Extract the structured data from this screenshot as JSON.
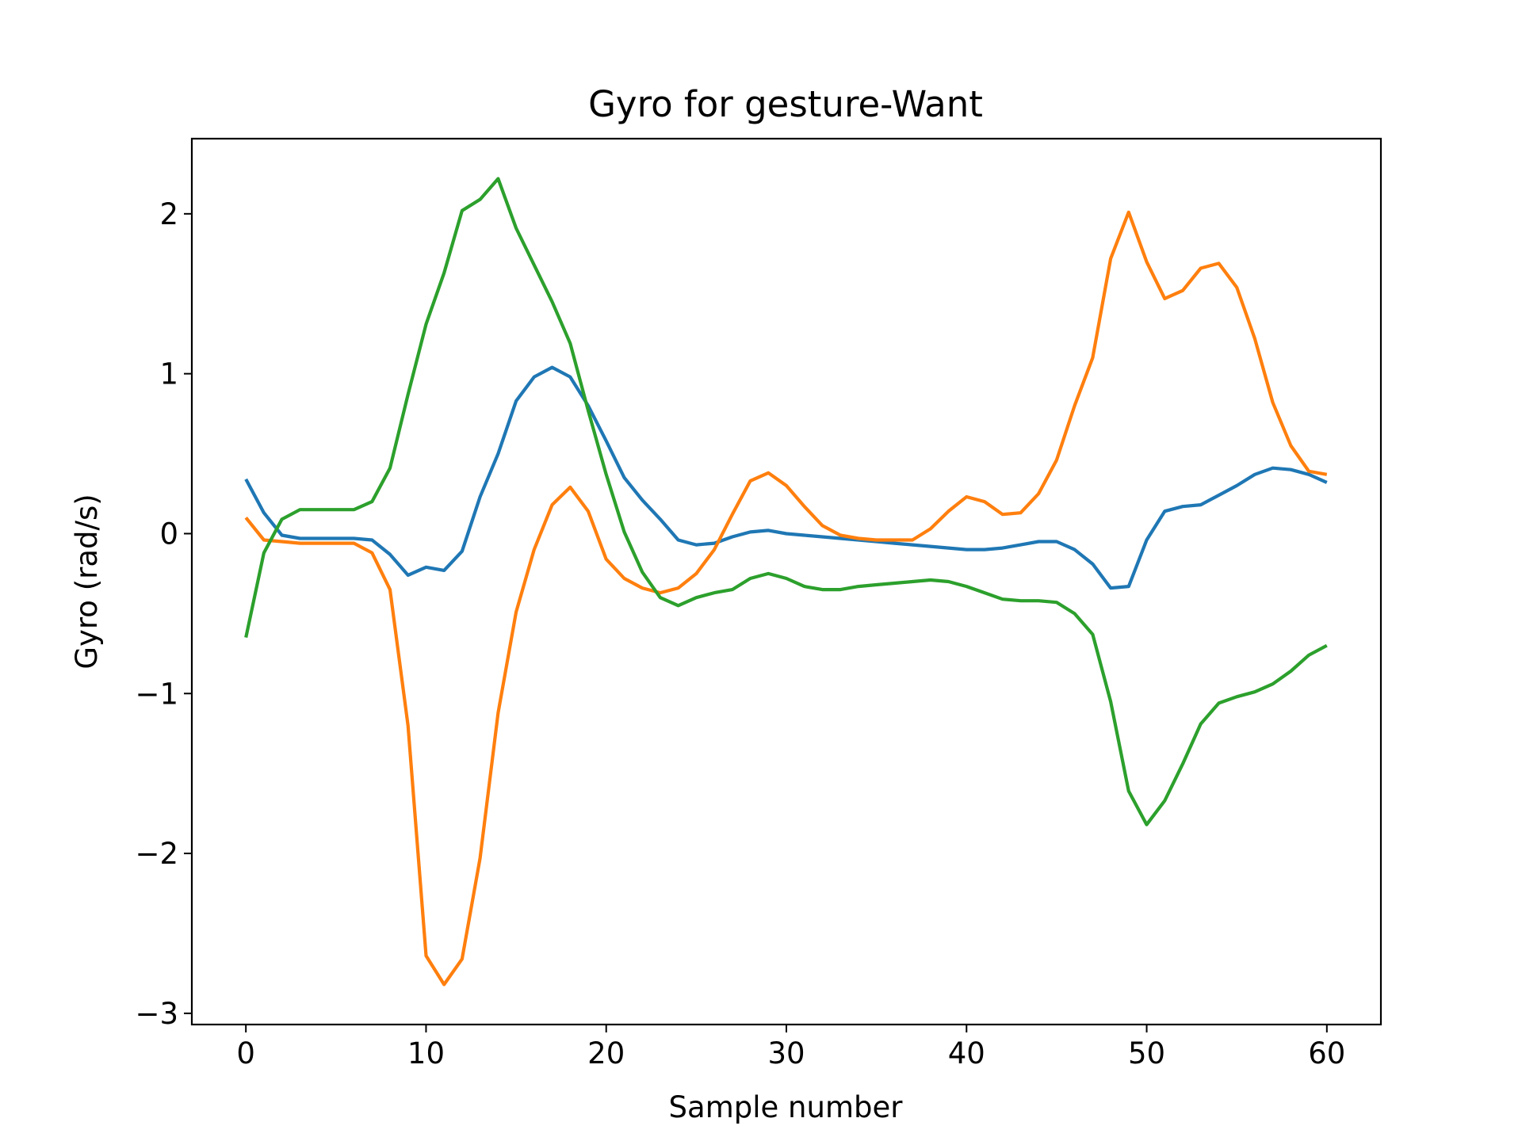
{
  "chart_data": {
    "type": "line",
    "title": "Gyro for gesture-Want",
    "xlabel": "Sample number",
    "ylabel": "Gyro  (rad/s)",
    "xlim": [
      -3,
      63
    ],
    "ylim": [
      -3.07,
      2.47
    ],
    "xticks": [
      0,
      10,
      20,
      30,
      40,
      50,
      60
    ],
    "yticks": [
      -3,
      -2,
      -1,
      0,
      1,
      2
    ],
    "xtick_labels": [
      "0",
      "10",
      "20",
      "30",
      "40",
      "50",
      "60"
    ],
    "ytick_labels": [
      "−3",
      "−2",
      "−1",
      "0",
      "1",
      "2"
    ],
    "grid": false,
    "legend": "none",
    "x": [
      0,
      1,
      2,
      3,
      4,
      5,
      6,
      7,
      8,
      9,
      10,
      11,
      12,
      13,
      14,
      15,
      16,
      17,
      18,
      19,
      20,
      21,
      22,
      23,
      24,
      25,
      26,
      27,
      28,
      29,
      30,
      31,
      32,
      33,
      34,
      35,
      36,
      37,
      38,
      39,
      40,
      41,
      42,
      43,
      44,
      45,
      46,
      47,
      48,
      49,
      50,
      51,
      52,
      53,
      54,
      55,
      56,
      57,
      58,
      59,
      60
    ],
    "series": [
      {
        "color": "#1f77b4",
        "values": [
          0.34,
          0.13,
          -0.01,
          -0.03,
          -0.03,
          -0.03,
          -0.03,
          -0.04,
          -0.13,
          -0.26,
          -0.21,
          -0.23,
          -0.11,
          0.23,
          0.5,
          0.83,
          0.98,
          1.04,
          0.98,
          0.8,
          0.58,
          0.35,
          0.21,
          0.09,
          -0.04,
          -0.07,
          -0.06,
          -0.02,
          0.01,
          0.02,
          0.0,
          -0.01,
          -0.02,
          -0.03,
          -0.04,
          -0.05,
          -0.06,
          -0.07,
          -0.08,
          -0.09,
          -0.1,
          -0.1,
          -0.09,
          -0.07,
          -0.05,
          -0.05,
          -0.1,
          -0.19,
          -0.34,
          -0.33,
          -0.04,
          0.14,
          0.17,
          0.18,
          0.24,
          0.3,
          0.37,
          0.41,
          0.4,
          0.37,
          0.32
        ]
      },
      {
        "color": "#ff7f0e",
        "values": [
          0.1,
          -0.04,
          -0.05,
          -0.06,
          -0.06,
          -0.06,
          -0.06,
          -0.12,
          -0.35,
          -1.2,
          -2.64,
          -2.82,
          -2.66,
          -2.03,
          -1.12,
          -0.49,
          -0.1,
          0.18,
          0.29,
          0.14,
          -0.16,
          -0.28,
          -0.34,
          -0.37,
          -0.34,
          -0.25,
          -0.1,
          0.12,
          0.33,
          0.38,
          0.3,
          0.17,
          0.05,
          -0.01,
          -0.03,
          -0.04,
          -0.04,
          -0.04,
          0.03,
          0.14,
          0.23,
          0.2,
          0.12,
          0.13,
          0.25,
          0.46,
          0.8,
          1.1,
          1.72,
          2.01,
          1.7,
          1.47,
          1.52,
          1.66,
          1.69,
          1.54,
          1.22,
          0.82,
          0.55,
          0.39,
          0.37
        ]
      },
      {
        "color": "#2ca02c",
        "values": [
          -0.65,
          -0.12,
          0.09,
          0.15,
          0.15,
          0.15,
          0.15,
          0.2,
          0.41,
          0.87,
          1.31,
          1.63,
          2.02,
          2.09,
          2.22,
          1.91,
          1.68,
          1.45,
          1.19,
          0.77,
          0.37,
          0.01,
          -0.24,
          -0.4,
          -0.45,
          -0.4,
          -0.37,
          -0.35,
          -0.28,
          -0.25,
          -0.28,
          -0.33,
          -0.35,
          -0.35,
          -0.33,
          -0.32,
          -0.31,
          -0.3,
          -0.29,
          -0.3,
          -0.33,
          -0.37,
          -0.41,
          -0.42,
          -0.42,
          -0.43,
          -0.5,
          -0.63,
          -1.05,
          -1.61,
          -1.82,
          -1.67,
          -1.44,
          -1.19,
          -1.06,
          -1.02,
          -0.99,
          -0.94,
          -0.86,
          -0.76,
          -0.7
        ]
      }
    ]
  }
}
